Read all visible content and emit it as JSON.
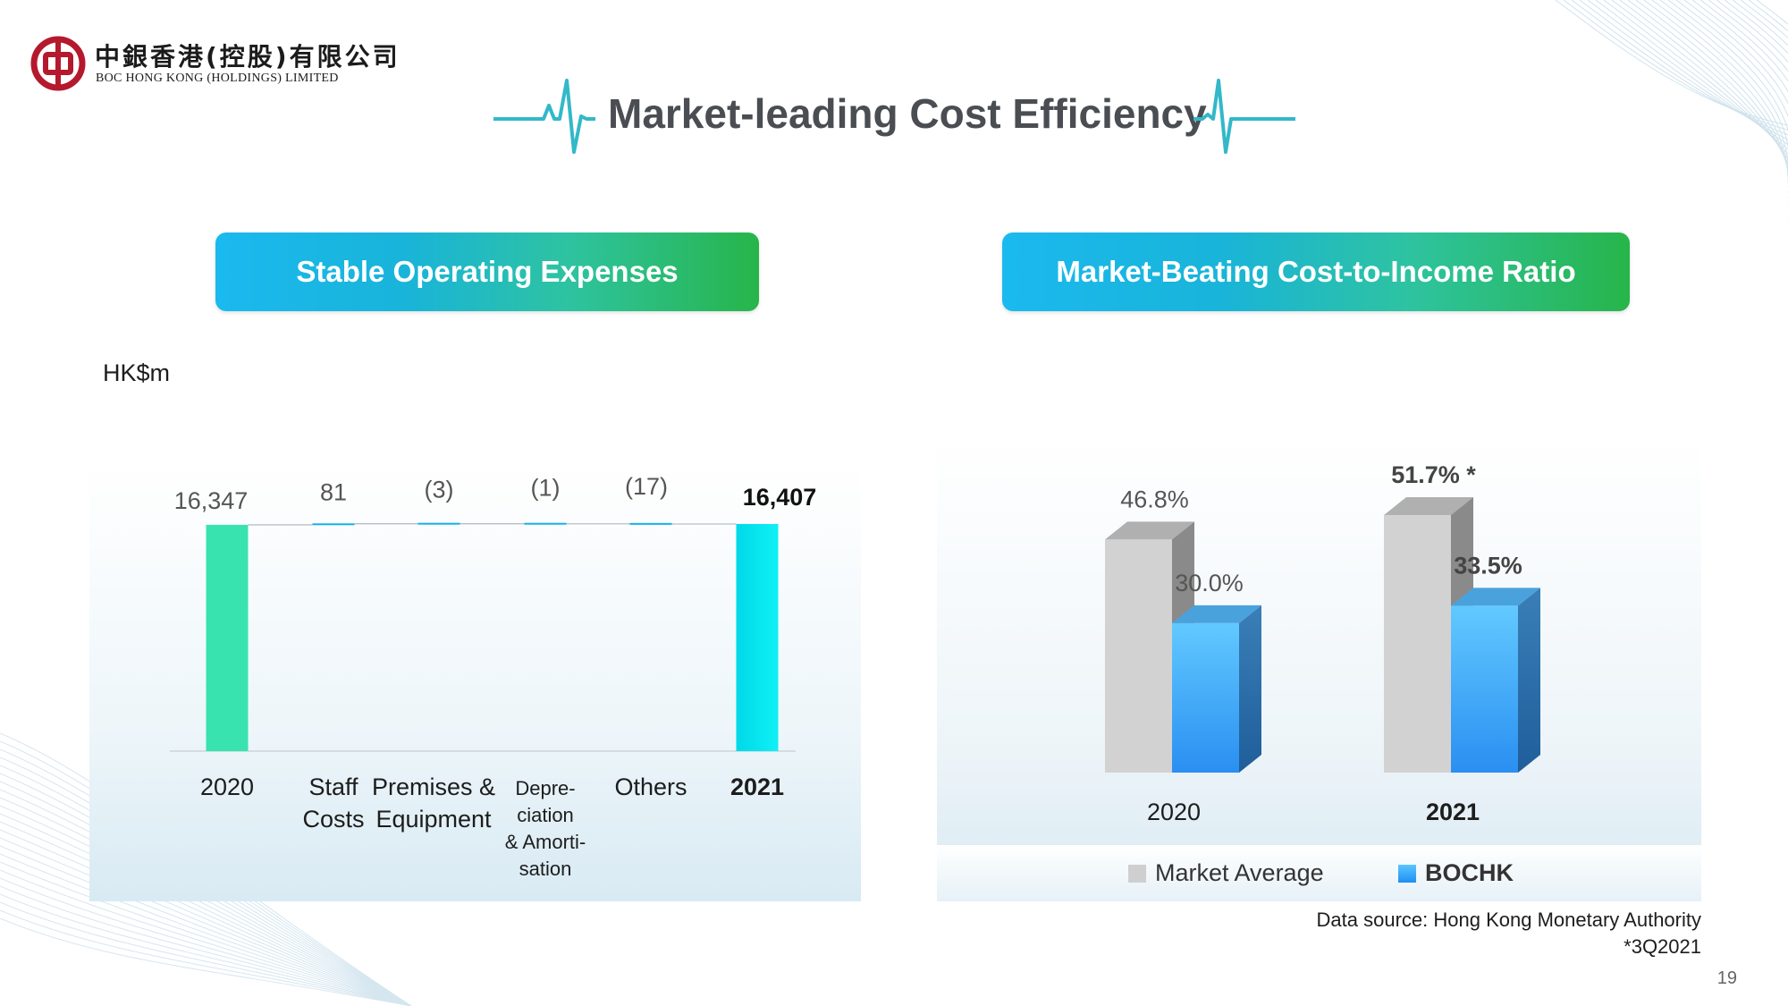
{
  "header": {
    "logo_cn": "中銀香港(控股)有限公司",
    "logo_en": "BOC HONG KONG (HOLDINGS) LIMITED",
    "title": "Market-leading Cost Efficiency"
  },
  "left_section": {
    "heading": "Stable Operating Expenses",
    "unit_label": "HK$m"
  },
  "right_section": {
    "heading": "Market-Beating Cost-to-Income Ratio"
  },
  "chart_data": [
    {
      "type": "bar",
      "subtype": "waterfall",
      "title": "",
      "unit": "HK$m",
      "categories": [
        "2020",
        "Staff Costs",
        "Premises & Equipment",
        "Depre-ciation & Amorti-sation",
        "Others",
        "2021"
      ],
      "category_lines": [
        [
          "2020"
        ],
        [
          "Staff",
          "Costs"
        ],
        [
          "Premises &",
          "Equipment"
        ],
        [
          "Depre-",
          "ciation",
          "& Amorti-",
          "sation"
        ],
        [
          "Others"
        ],
        [
          "2021"
        ]
      ],
      "values": [
        16347,
        81,
        -3,
        -1,
        -17,
        16407
      ],
      "labels": [
        "16,347",
        "81",
        "(3)",
        "(1)",
        "(17)",
        "16,407"
      ],
      "bar_kinds": [
        "total",
        "delta",
        "delta",
        "delta",
        "delta",
        "total"
      ],
      "bold": [
        false,
        false,
        false,
        false,
        false,
        true
      ],
      "colors": {
        "start_total": "#38e3b0",
        "delta": "#15aff0",
        "end_total": "#03e5ef"
      }
    },
    {
      "type": "bar",
      "subtype": "3d-clustered",
      "title": "",
      "categories": [
        "2020",
        "2021"
      ],
      "series": [
        {
          "name": "Market Average",
          "values": [
            46.8,
            51.7
          ],
          "labels": [
            "46.8%",
            "51.7% *"
          ],
          "color": "#d3d2d3"
        },
        {
          "name": "BOCHK",
          "values": [
            30.0,
            33.5
          ],
          "labels": [
            "30.0%",
            "33.5%"
          ],
          "color": "#36a6f2"
        }
      ],
      "bold_category": "2021",
      "legend": "bottom",
      "data_source": "Data source: Hong Kong Monetary Authority",
      "footnote": "*3Q2021"
    }
  ],
  "footer": {
    "page_number": "19"
  }
}
